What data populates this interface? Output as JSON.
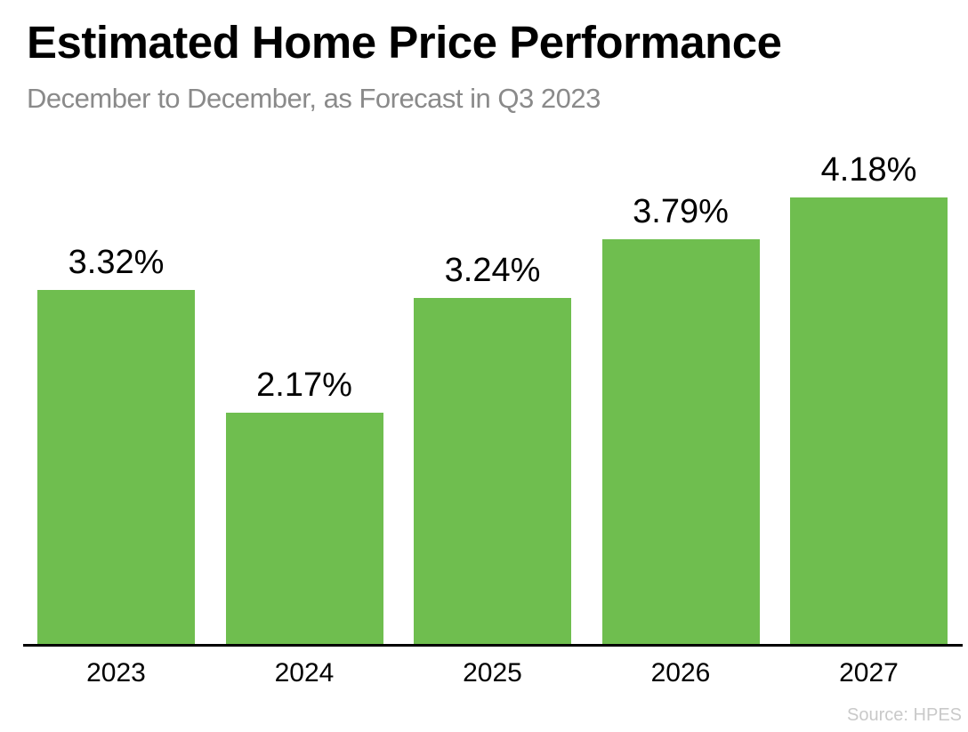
{
  "chart_data": {
    "type": "bar",
    "title": "Estimated Home Price Performance",
    "subtitle": "December to December, as Forecast in Q3 2023",
    "source": "Source: HPES",
    "categories": [
      "2023",
      "2024",
      "2025",
      "2026",
      "2027"
    ],
    "values": [
      3.32,
      2.17,
      3.24,
      3.79,
      4.18
    ],
    "value_labels": [
      "3.32%",
      "2.17%",
      "3.24%",
      "3.79%",
      "4.18%"
    ],
    "xlabel": "",
    "ylabel": "",
    "ylim": [
      0,
      4.7
    ],
    "grid": false,
    "legend_position": "none",
    "bar_color": "#6FBE4F",
    "axis_line_color": "#000000",
    "title_color": "#000000",
    "subtitle_color": "#8a8a8a",
    "source_color": "#c9c9c9"
  }
}
